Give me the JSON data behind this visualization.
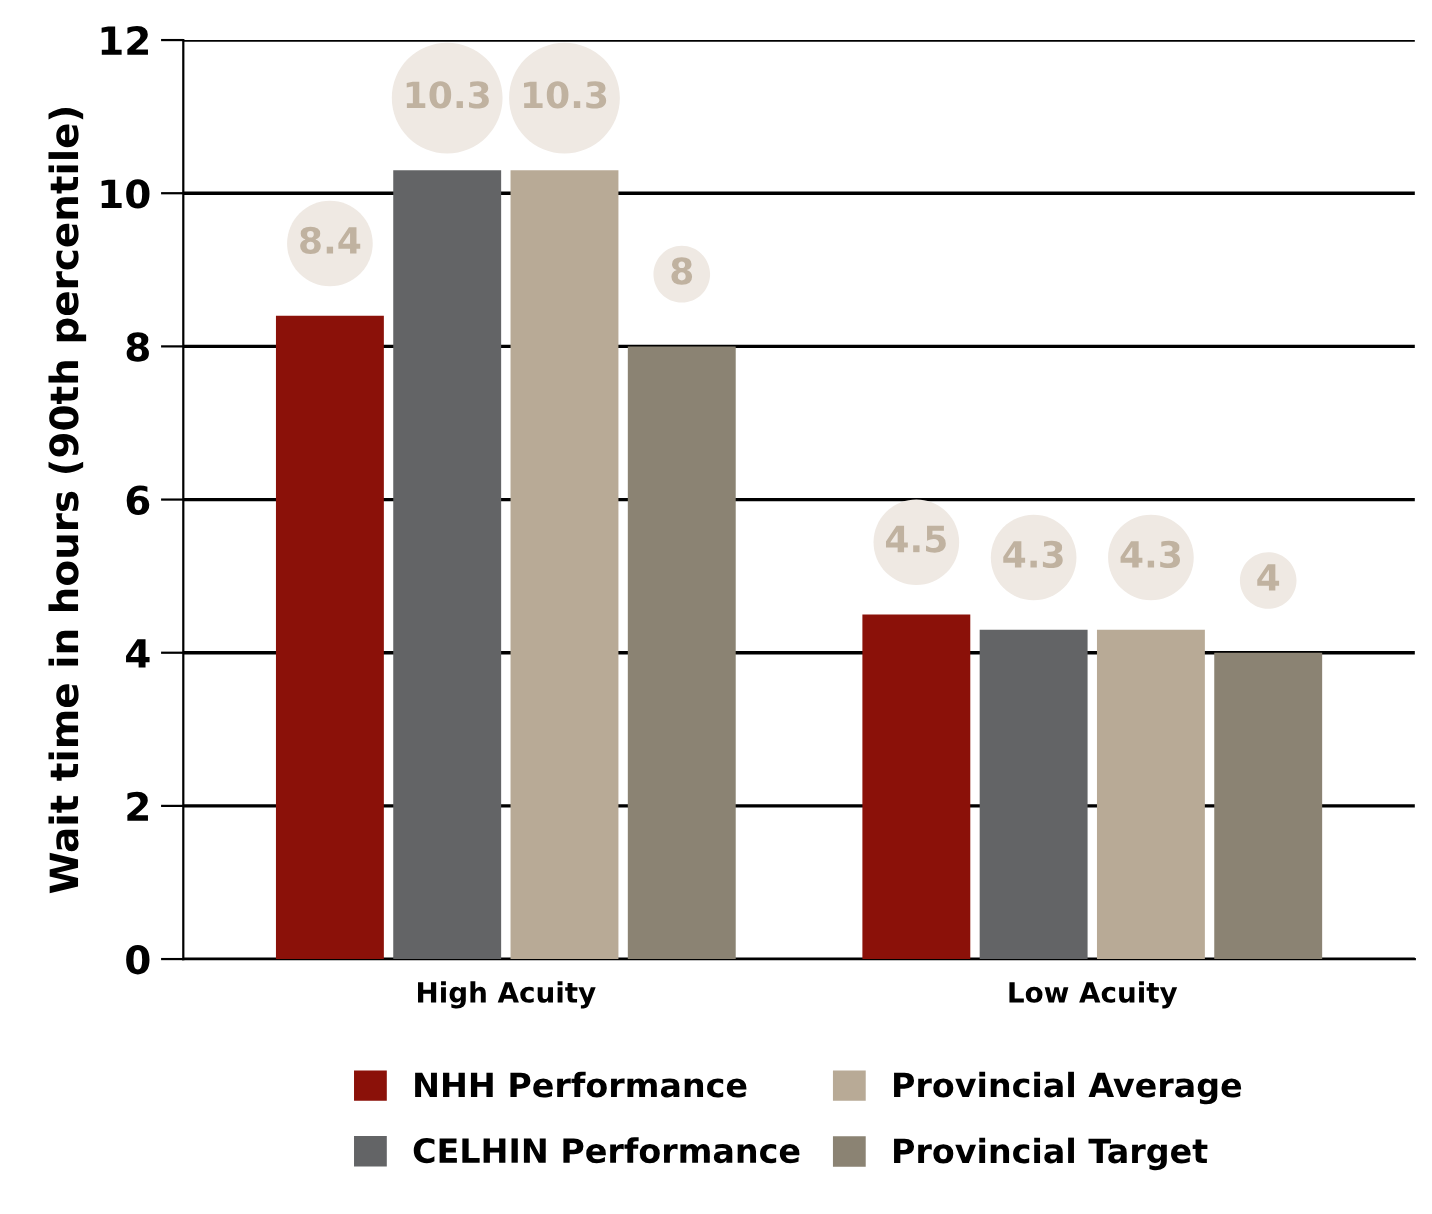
{
  "chart_data": {
    "type": "bar",
    "ylabel": "Wait time in hours (90th percentile)",
    "categories": [
      "High Acuity",
      "Low Acuity"
    ],
    "series": [
      {
        "name": "NHH Performance",
        "color": "#8b1109",
        "values": [
          8.4,
          4.5
        ]
      },
      {
        "name": "CELHIN Performance",
        "color": "#636466",
        "values": [
          10.3,
          4.3
        ]
      },
      {
        "name": "Provincial Average",
        "color": "#b8aa96",
        "values": [
          10.3,
          4.3
        ]
      },
      {
        "name": "Provincial Target",
        "color": "#8b8373",
        "values": [
          8,
          4
        ]
      }
    ],
    "ylim": [
      0,
      12
    ],
    "yticks": [
      0,
      2,
      4,
      6,
      8,
      10,
      12
    ],
    "grid": "y",
    "legend": "bottom",
    "data_labels": true
  }
}
